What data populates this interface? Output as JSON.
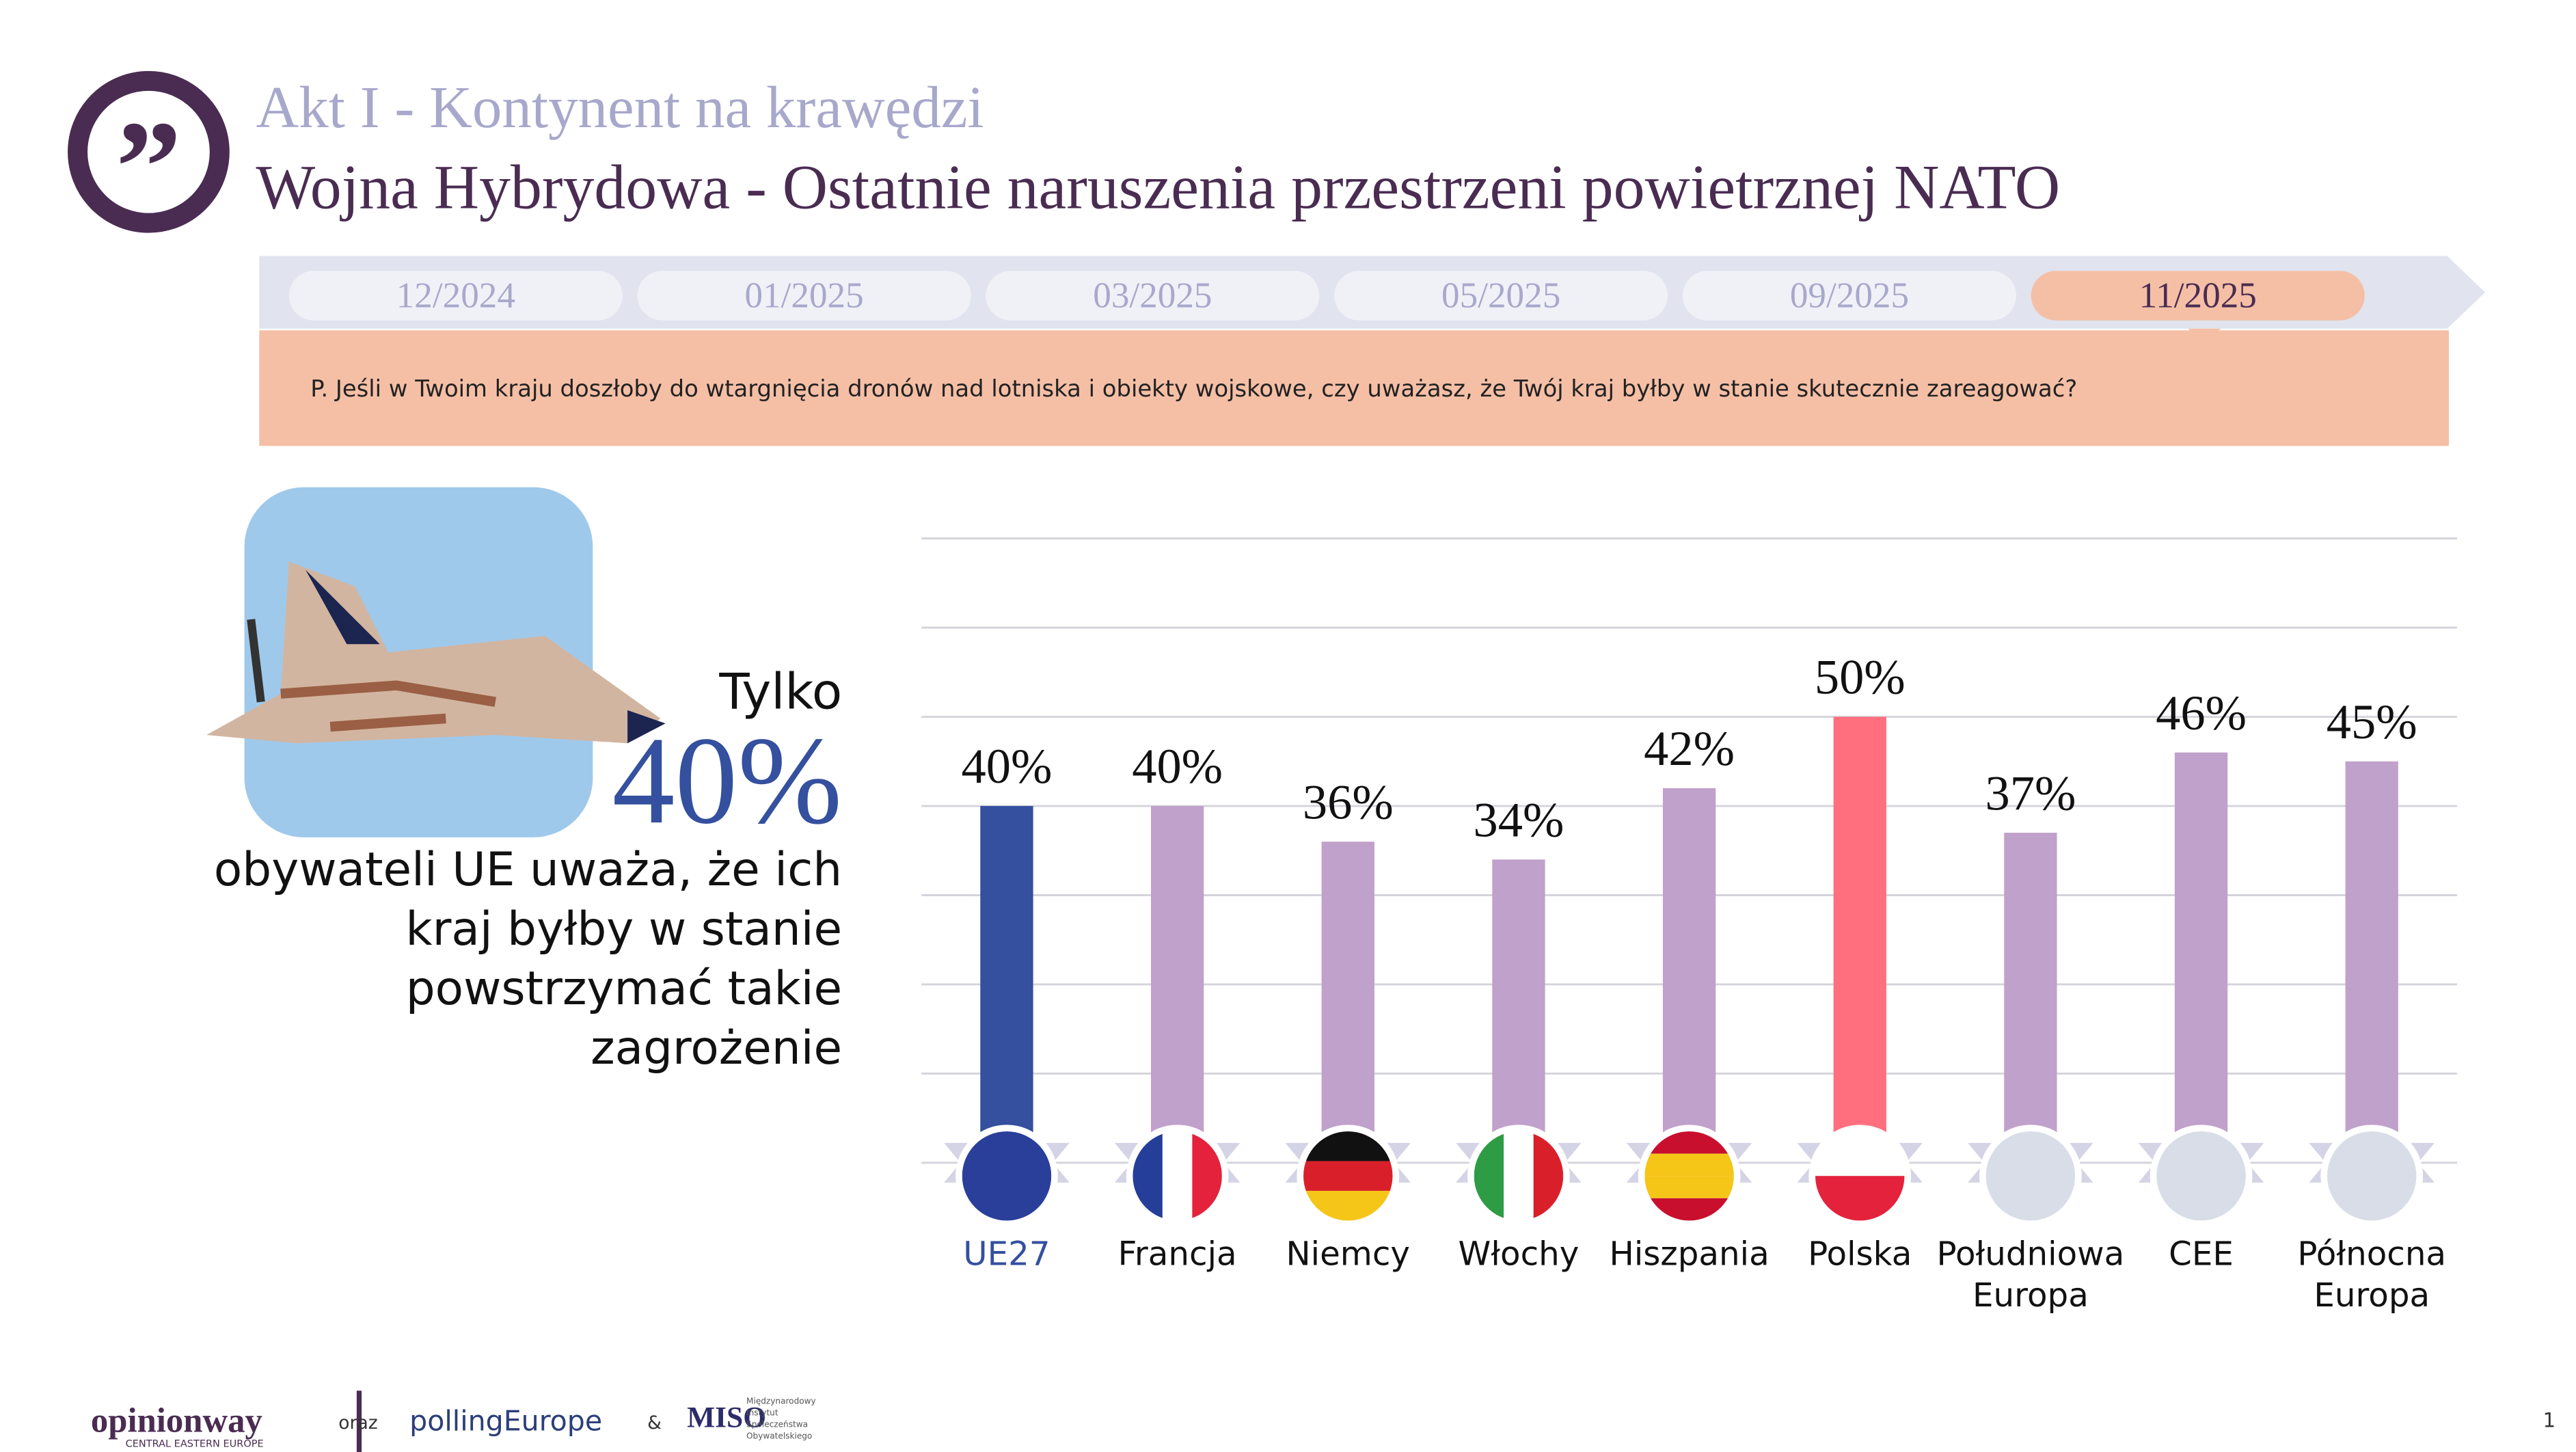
{
  "header": {
    "title": "Akt I - Kontynent na krawędzi",
    "subtitle": "Wojna Hybrydowa - Ostatnie naruszenia przestrzeni powietrznej NATO"
  },
  "timeline": [
    "12/2024",
    "01/2025",
    "03/2025",
    "05/2025",
    "09/2025",
    "11/2025"
  ],
  "question": "P. Jeśli w Twoim kraju doszłoby do wtargnięcia dronów nad lotniska i obiekty wojskowe, czy uważasz, że Twój kraj byłby w stanie skutecznie zareagować?",
  "callout": {
    "lead": "Tylko",
    "figure": "40%",
    "text": "obywateli UE uważa, że ich kraj byłby w stanie powstrzymać takie zagrożenie"
  },
  "chart_data": {
    "type": "bar",
    "categories": [
      "UE27",
      "Francja",
      "Niemcy",
      "Włochy",
      "Hiszpania",
      "Polska",
      "Południowa Europa",
      "CEE",
      "Północna Europa"
    ],
    "values": [
      40,
      40,
      36,
      34,
      42,
      50,
      37,
      46,
      45
    ],
    "value_labels": [
      "40%",
      "40%",
      "36%",
      "34%",
      "42%",
      "50%",
      "37%",
      "46%",
      "45%"
    ],
    "colors": [
      "#34509e",
      "#c0a1cb",
      "#c0a1cb",
      "#c0a1cb",
      "#c0a1cb",
      "#ff6f7d",
      "#c0a1cb",
      "#c0a1cb",
      "#c0a1cb"
    ],
    "ylim": [
      0,
      70
    ],
    "yticks": [
      0,
      10,
      20,
      30,
      40,
      50,
      60,
      70
    ],
    "grid": true
  },
  "footer": {
    "brand": "opinionway",
    "brand_sub": "CENTRAL EASTERN EUROPE",
    "and1": "oraz",
    "partner": "pollingEurope",
    "and2": "&",
    "miso": "MISO",
    "miso_full": "Międzynarodowy Instytut Społeczeństwa Obywatelskiego",
    "page": "1"
  }
}
